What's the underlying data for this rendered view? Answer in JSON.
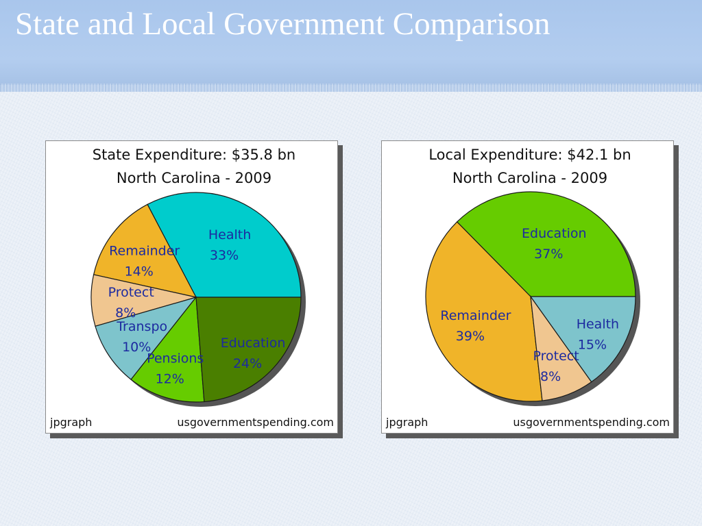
{
  "slide": {
    "title": "State and Local Government Comparison"
  },
  "chart_data": [
    {
      "type": "pie",
      "title": "State Expenditure: $35.8 bn",
      "subtitle": "North Carolina - 2009",
      "footer_left": "jpgraph",
      "footer_right": "usgovernmentspending.com",
      "slices": [
        {
          "label": "Health",
          "value": 33,
          "value_label": "33%",
          "color": "#00cccc"
        },
        {
          "label": "Remainder",
          "value": 14,
          "value_label": "14%",
          "color": "#f0b429"
        },
        {
          "label": "Protect",
          "value": 8,
          "value_label": "8%",
          "color": "#f0c690"
        },
        {
          "label": "Transpo",
          "value": 10,
          "value_label": "10%",
          "color": "#7ec4cc"
        },
        {
          "label": "Pensions",
          "value": 12,
          "value_label": "12%",
          "color": "#66cc00"
        },
        {
          "label": "Education",
          "value": 24,
          "value_label": "24%",
          "color": "#4a7f00"
        }
      ]
    },
    {
      "type": "pie",
      "title": "Local Expenditure: $42.1 bn",
      "subtitle": "North Carolina - 2009",
      "footer_left": "jpgraph",
      "footer_right": "usgovernmentspending.com",
      "slices": [
        {
          "label": "Education",
          "value": 37,
          "value_label": "37%",
          "color": "#66cc00"
        },
        {
          "label": "Remainder",
          "value": 39,
          "value_label": "39%",
          "color": "#f0b429"
        },
        {
          "label": "Protect",
          "value": 8,
          "value_label": "8%",
          "color": "#f0c690"
        },
        {
          "label": "Health",
          "value": 15,
          "value_label": "15%",
          "color": "#7ec4cc"
        }
      ]
    }
  ]
}
